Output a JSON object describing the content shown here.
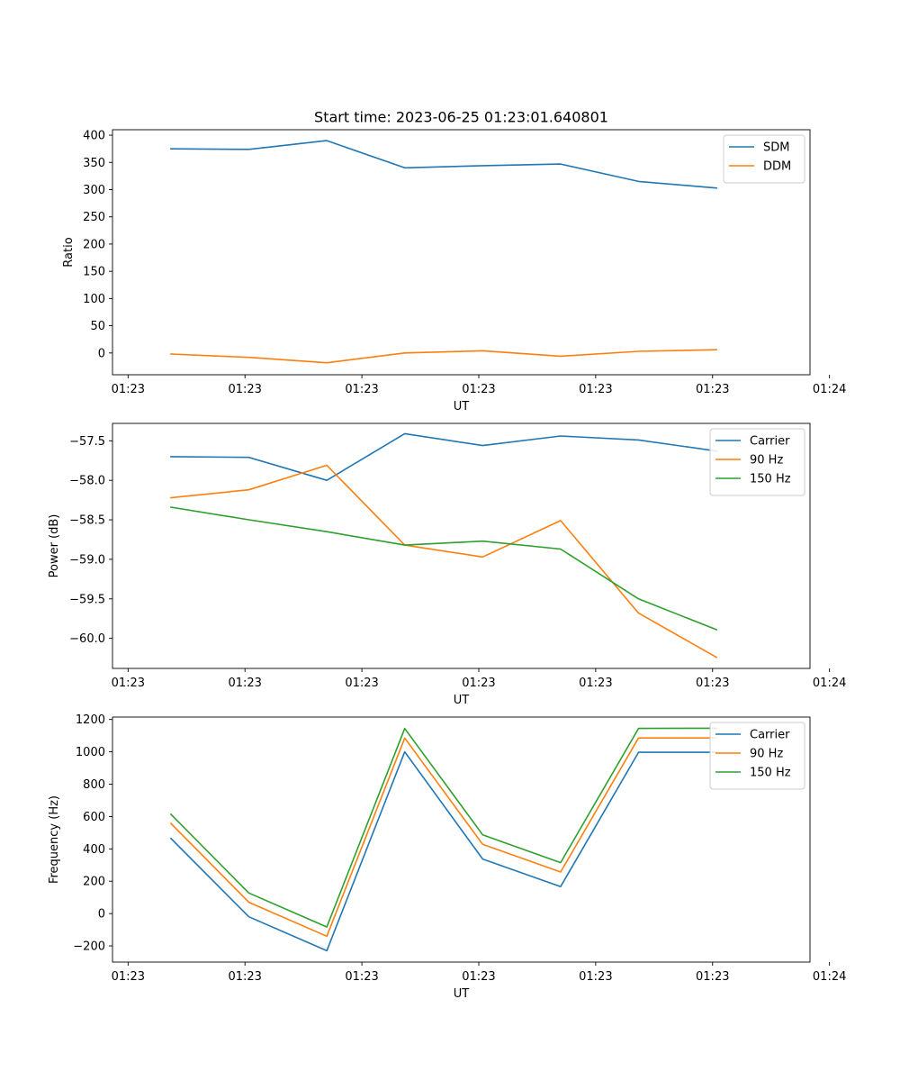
{
  "figure": {
    "title": "Start time: 2023-06-25 01:23:01.640801"
  },
  "chart_data": [
    {
      "type": "line",
      "title": "Start time: 2023-06-25 01:23:01.640801",
      "xlabel": "UT",
      "ylabel": "Ratio",
      "x": [
        1,
        2,
        3,
        4,
        5,
        6,
        7,
        8
      ],
      "xlim": [
        0.25,
        9.2
      ],
      "xticks": [
        0.45,
        1.95,
        3.45,
        4.95,
        6.45,
        7.95,
        9.45
      ],
      "xtick_labels": [
        "01:23",
        "01:23",
        "01:23",
        "01:23",
        "01:23",
        "01:23",
        "01:24"
      ],
      "ylim": [
        -40,
        410
      ],
      "yticks": [
        0,
        50,
        100,
        150,
        200,
        250,
        300,
        350,
        400
      ],
      "ytick_labels": [
        "0",
        "50",
        "100",
        "150",
        "200",
        "250",
        "300",
        "350",
        "400"
      ],
      "legend": "top-right",
      "series": [
        {
          "name": "SDM",
          "color": "#1f77b4",
          "values": [
            375,
            374,
            390,
            340,
            344,
            347,
            315,
            303
          ]
        },
        {
          "name": "DDM",
          "color": "#ff7f0e",
          "values": [
            -2,
            -8,
            -18,
            0,
            4,
            -6,
            3,
            6
          ]
        }
      ]
    },
    {
      "type": "line",
      "xlabel": "UT",
      "ylabel": "Power (dB)",
      "x": [
        1,
        2,
        3,
        4,
        5,
        6,
        7,
        8
      ],
      "xlim": [
        0.25,
        9.2
      ],
      "xticks": [
        0.45,
        1.95,
        3.45,
        4.95,
        6.45,
        7.95,
        9.45
      ],
      "xtick_labels": [
        "01:23",
        "01:23",
        "01:23",
        "01:23",
        "01:23",
        "01:23",
        "01:24"
      ],
      "ylim": [
        -60.38,
        -57.28
      ],
      "yticks": [
        -60.0,
        -59.5,
        -59.0,
        -58.5,
        -58.0,
        -57.5
      ],
      "ytick_labels": [
        "−60.0",
        "−59.5",
        "−59.0",
        "−58.5",
        "−58.0",
        "−57.5"
      ],
      "legend": "top-right",
      "series": [
        {
          "name": "Carrier",
          "color": "#1f77b4",
          "values": [
            -57.7,
            -57.71,
            -58.0,
            -57.41,
            -57.56,
            -57.44,
            -57.49,
            -57.63
          ]
        },
        {
          "name": "90 Hz",
          "color": "#ff7f0e",
          "values": [
            -58.22,
            -58.12,
            -57.81,
            -58.82,
            -58.97,
            -58.51,
            -59.68,
            -60.24
          ]
        },
        {
          "name": "150 Hz",
          "color": "#2ca02c",
          "values": [
            -58.34,
            -58.5,
            -58.65,
            -58.82,
            -58.77,
            -58.87,
            -59.5,
            -59.89
          ]
        }
      ]
    },
    {
      "type": "line",
      "xlabel": "UT",
      "ylabel": "Frequency (Hz)",
      "x": [
        1,
        2,
        3,
        4,
        5,
        6,
        7,
        8
      ],
      "xlim": [
        0.25,
        9.2
      ],
      "xticks": [
        0.45,
        1.95,
        3.45,
        4.95,
        6.45,
        7.95,
        9.45
      ],
      "xtick_labels": [
        "01:23",
        "01:23",
        "01:23",
        "01:23",
        "01:23",
        "01:23",
        "01:24"
      ],
      "ylim": [
        -300,
        1215
      ],
      "yticks": [
        -200,
        0,
        200,
        400,
        600,
        800,
        1000,
        1200
      ],
      "ytick_labels": [
        "−200",
        "0",
        "200",
        "400",
        "600",
        "800",
        "1000",
        "1200"
      ],
      "legend": "top-right",
      "series": [
        {
          "name": "Carrier",
          "color": "#1f77b4",
          "values": [
            465,
            -20,
            -230,
            1000,
            337,
            167,
            997,
            997
          ]
        },
        {
          "name": "90 Hz",
          "color": "#ff7f0e",
          "values": [
            557,
            70,
            -140,
            1085,
            428,
            257,
            1086,
            1086
          ]
        },
        {
          "name": "150 Hz",
          "color": "#2ca02c",
          "values": [
            614,
            127,
            -83,
            1144,
            487,
            315,
            1145,
            1146
          ]
        }
      ]
    }
  ]
}
